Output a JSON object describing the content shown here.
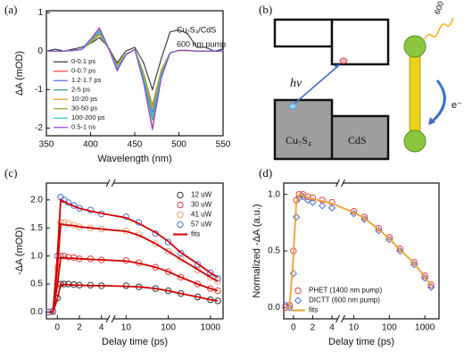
{
  "chart_data": [
    {
      "type": "line",
      "label": "(a)",
      "xlabel": "Wavelength (nm)",
      "ylabel": "ΔA (mOD)",
      "annotations": [
        {
          "text": "Cu₇S₄/CdS",
          "color": "#e02020"
        },
        {
          "text": "600 nm pump",
          "color": "#e02020"
        }
      ],
      "xlim": [
        350,
        550
      ],
      "xticks": [
        350,
        400,
        450,
        500,
        550
      ],
      "ylim": [
        -2.2,
        1.05
      ],
      "yticks": [
        -2,
        -1,
        0,
        1
      ],
      "legend": "lower left",
      "x": [
        350,
        360,
        370,
        380,
        390,
        400,
        410,
        420,
        430,
        440,
        450,
        460,
        470,
        480,
        490,
        500,
        510,
        520,
        530,
        540,
        550
      ],
      "series": [
        {
          "name": "0-0.1 ps",
          "color": "#333333",
          "values": [
            0,
            0.05,
            0,
            0.05,
            0.1,
            0.2,
            0.35,
            0.1,
            -0.3,
            0,
            0.1,
            -0.3,
            -1.0,
            -0.2,
            0.5,
            0.55,
            0.45,
            0.1,
            0.1,
            0,
            0.05
          ]
        },
        {
          "name": "0-0.7 ps",
          "color": "#e8413c",
          "values": [
            0,
            0,
            0,
            0.02,
            0.05,
            0.3,
            0.6,
            0.1,
            -0.5,
            -0.1,
            0.05,
            -0.8,
            -2.0,
            -0.7,
            -0.05,
            0.02,
            0.02,
            0,
            0,
            0,
            0
          ]
        },
        {
          "name": "1.2-1.7 ps",
          "color": "#4a6fd8",
          "values": [
            0,
            0,
            0,
            0.02,
            0.04,
            0.24,
            0.48,
            0.08,
            -0.4,
            -0.08,
            0.04,
            -0.64,
            -1.6,
            -0.56,
            -0.04,
            0.02,
            0.02,
            0,
            0,
            0,
            0
          ]
        },
        {
          "name": "2-5 ps",
          "color": "#2e9d6f",
          "values": [
            0,
            0,
            0,
            0.02,
            0.05,
            0.27,
            0.54,
            0.09,
            -0.45,
            -0.09,
            0.05,
            -0.72,
            -1.8,
            -0.63,
            -0.05,
            0.02,
            0.02,
            0,
            0,
            0,
            0
          ]
        },
        {
          "name": "10-20 ps",
          "color": "#e0a020",
          "values": [
            0,
            0,
            0,
            0.02,
            0.04,
            0.23,
            0.45,
            0.08,
            -0.38,
            -0.08,
            0.04,
            -0.6,
            -1.5,
            -0.53,
            -0.04,
            0.02,
            0.02,
            0,
            0,
            0,
            0
          ]
        },
        {
          "name": "30-50 ps",
          "color": "#9a9a2a",
          "values": [
            0,
            0,
            0,
            0.01,
            0.04,
            0.21,
            0.42,
            0.07,
            -0.35,
            -0.07,
            0.04,
            -0.56,
            -1.4,
            -0.49,
            -0.04,
            0.01,
            0.01,
            0,
            0,
            0,
            0
          ]
        },
        {
          "name": "100-200 ps",
          "color": "#35c1e0",
          "values": [
            0,
            0,
            0,
            0.02,
            0.04,
            0.26,
            0.51,
            0.09,
            -0.43,
            -0.09,
            0.04,
            -0.68,
            -1.7,
            -0.6,
            -0.04,
            0.02,
            0.02,
            0,
            0,
            0,
            0
          ]
        },
        {
          "name": "0.5-1 ns",
          "color": "#9b3fd9",
          "values": [
            0,
            0,
            0,
            0.02,
            0.05,
            0.31,
            0.61,
            0.1,
            -0.51,
            -0.1,
            0.05,
            -0.82,
            -2.05,
            -0.71,
            -0.05,
            0.02,
            0.02,
            0,
            0,
            0,
            0
          ]
        }
      ]
    },
    {
      "type": "scatter",
      "label": "(c)",
      "xlabel": "Delay time (ps)",
      "ylabel": "-ΔA (mOD)",
      "x_segments": [
        {
          "scale": "linear",
          "lim": [
            -1,
            4.6
          ],
          "ticks": [
            0,
            2,
            4
          ]
        },
        {
          "scale": "log",
          "lim": [
            5,
            2000
          ],
          "ticks": [
            10,
            100,
            1000
          ]
        }
      ],
      "ylim": [
        -0.12,
        2.3
      ],
      "yticks": [
        {
          "value": 0,
          "label": "0.0"
        },
        {
          "value": 0.5,
          "label": "0.5"
        },
        {
          "value": 1,
          "label": "1.0"
        },
        {
          "value": 1.5,
          "label": "1.5"
        },
        {
          "value": 2,
          "label": "2.0"
        }
      ],
      "legend": "upper right",
      "x": [
        -0.8,
        -0.4,
        0,
        0.3,
        0.6,
        1,
        1.5,
        2,
        3,
        4,
        10,
        20,
        50,
        100,
        200,
        500,
        1000,
        1500
      ],
      "series": [
        {
          "name": "12 uW",
          "color": "#333333",
          "marker": "circle",
          "values": [
            0,
            0,
            0.25,
            0.5,
            0.5,
            0.5,
            0.49,
            0.48,
            0.48,
            0.47,
            0.47,
            0.45,
            0.42,
            0.38,
            0.33,
            0.27,
            0.22,
            0.2
          ]
        },
        {
          "name": "30 uW",
          "color": "#e8413c",
          "marker": "circle",
          "values": [
            0,
            0.01,
            0.5,
            1.0,
            1.0,
            0.98,
            0.97,
            0.95,
            0.95,
            0.93,
            0.92,
            0.88,
            0.8,
            0.72,
            0.62,
            0.5,
            0.42,
            0.38
          ]
        },
        {
          "name": "41 uW",
          "color": "#f0a070",
          "marker": "circle",
          "values": [
            0,
            0,
            0.8,
            1.6,
            1.6,
            1.58,
            1.55,
            1.52,
            1.5,
            1.48,
            1.45,
            1.38,
            1.22,
            1.08,
            0.95,
            0.75,
            0.62,
            0.55
          ]
        },
        {
          "name": "57 uW",
          "color": "#4a6fd8",
          "marker": "circle",
          "values": [
            0,
            0.02,
            1.0,
            2.05,
            2.0,
            1.95,
            1.9,
            1.85,
            1.82,
            1.75,
            1.7,
            1.6,
            1.4,
            1.25,
            1.05,
            0.85,
            0.7,
            0.6
          ]
        }
      ],
      "fits": {
        "name": "fits",
        "color": "#d00000",
        "values": [
          [
            0,
            0,
            0.24,
            0.49,
            0.49,
            0.49,
            0.48,
            0.48,
            0.47,
            0.47,
            0.46,
            0.45,
            0.42,
            0.38,
            0.33,
            0.27,
            0.22,
            0.2
          ],
          [
            0,
            0,
            0.48,
            0.97,
            0.97,
            0.96,
            0.96,
            0.95,
            0.94,
            0.93,
            0.91,
            0.87,
            0.8,
            0.72,
            0.62,
            0.5,
            0.42,
            0.38
          ],
          [
            0,
            0,
            0.78,
            1.57,
            1.56,
            1.55,
            1.54,
            1.52,
            1.5,
            1.48,
            1.44,
            1.37,
            1.22,
            1.08,
            0.94,
            0.76,
            0.62,
            0.55
          ],
          [
            0,
            0,
            1.0,
            2.0,
            1.97,
            1.93,
            1.89,
            1.85,
            1.8,
            1.76,
            1.68,
            1.58,
            1.42,
            1.26,
            1.06,
            0.86,
            0.7,
            0.62
          ]
        ]
      }
    },
    {
      "type": "scatter",
      "label": "(d)",
      "xlabel": "Delay time (ps)",
      "ylabel": "Normalized -ΔA (a.u.)",
      "x_segments": [
        {
          "scale": "linear",
          "lim": [
            -1,
            4.6
          ],
          "ticks": [
            0,
            2,
            4
          ]
        },
        {
          "scale": "log",
          "lim": [
            5,
            2500
          ],
          "ticks": [
            10,
            100,
            1000
          ]
        }
      ],
      "ylim": [
        -0.1,
        1.1
      ],
      "yticks": [
        {
          "value": 0,
          "label": "0.0"
        },
        {
          "value": 0.5,
          "label": "0.5"
        },
        {
          "value": 1,
          "label": "1.0"
        }
      ],
      "legend": "lower left",
      "x": [
        -0.8,
        -0.4,
        0,
        0.3,
        0.6,
        1,
        1.5,
        2,
        3,
        4,
        10,
        20,
        50,
        100,
        200,
        500,
        1000,
        1500
      ],
      "series": [
        {
          "name": "PHET (1400 nm pump)",
          "color": "#e8413c",
          "marker": "circle",
          "values": [
            0,
            0.02,
            0.5,
            0.95,
            1.0,
            1.0,
            0.98,
            0.97,
            0.95,
            0.93,
            0.85,
            0.8,
            0.7,
            0.62,
            0.52,
            0.4,
            0.28,
            0.2
          ]
        },
        {
          "name": "DICTT (600 nm pump)",
          "color": "#4a6fd8",
          "marker": "diamond",
          "values": [
            0.02,
            0,
            0.3,
            0.8,
            0.97,
            0.98,
            0.95,
            0.93,
            0.9,
            0.88,
            0.83,
            0.78,
            0.68,
            0.6,
            0.5,
            0.38,
            0.26,
            0.18
          ]
        }
      ],
      "fits": {
        "name": "fits",
        "color": "#f0a030",
        "values": [
          [
            0,
            0,
            0.45,
            0.92,
            1.0,
            0.99,
            0.97,
            0.96,
            0.94,
            0.92,
            0.84,
            0.79,
            0.69,
            0.61,
            0.51,
            0.39,
            0.27,
            0.19
          ]
        ]
      }
    }
  ],
  "diagram": {
    "label": "(b)",
    "photon": "hν",
    "left_material": "Cu₇S₄",
    "right_material": "CdS",
    "pump": "600 nm",
    "electron": "e⁻"
  }
}
